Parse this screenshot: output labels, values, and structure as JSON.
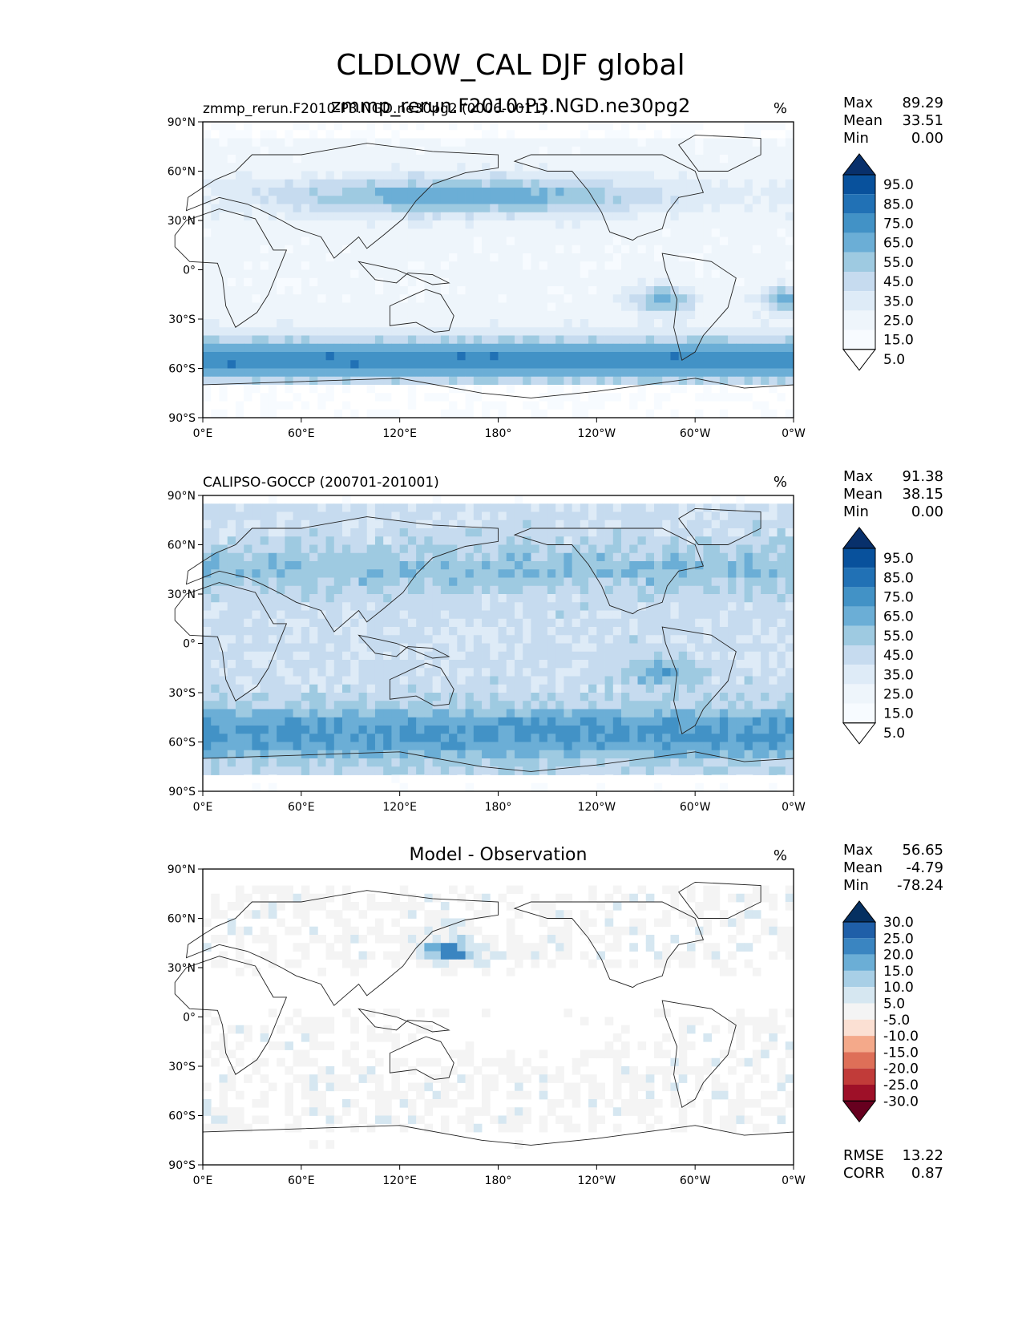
{
  "figure": {
    "title": "CLDLOW_CAL DJF global",
    "overlay_title": "zmmp_rerun.F2010-P3.NGD.ne30pg2"
  },
  "panels": [
    {
      "name": "model",
      "title_left": "zmmp_rerun.F2010-P3.NGD.ne30pg2 (0006-0011)",
      "title_center": "",
      "units": "%",
      "stats": [
        {
          "label": "Max",
          "value": "89.29"
        },
        {
          "label": "Mean",
          "value": "33.51"
        },
        {
          "label": "Min",
          "value": "0.00"
        }
      ],
      "colorbar": {
        "labels": [
          "95.0",
          "85.0",
          "75.0",
          "65.0",
          "55.0",
          "45.0",
          "35.0",
          "25.0",
          "15.0",
          "5.0"
        ],
        "colors": [
          "#08306b",
          "#08519c",
          "#2171b5",
          "#4292c6",
          "#6baed6",
          "#9ecae1",
          "#c6dbef",
          "#deebf7",
          "#eef5fb",
          "#f7fbff",
          "#ffffff"
        ]
      }
    },
    {
      "name": "obs",
      "title_left": "CALIPSO-GOCCP (200701-201001)",
      "title_center": "",
      "units": "%",
      "stats": [
        {
          "label": "Max",
          "value": "91.38"
        },
        {
          "label": "Mean",
          "value": "38.15"
        },
        {
          "label": "Min",
          "value": "0.00"
        }
      ],
      "colorbar": {
        "labels": [
          "95.0",
          "85.0",
          "75.0",
          "65.0",
          "55.0",
          "45.0",
          "35.0",
          "25.0",
          "15.0",
          "5.0"
        ],
        "colors": [
          "#08306b",
          "#08519c",
          "#2171b5",
          "#4292c6",
          "#6baed6",
          "#9ecae1",
          "#c6dbef",
          "#deebf7",
          "#eef5fb",
          "#f7fbff",
          "#ffffff"
        ]
      }
    },
    {
      "name": "diff",
      "title_left": "",
      "title_center": "Model - Observation",
      "units": "%",
      "stats": [
        {
          "label": "Max",
          "value": "56.65"
        },
        {
          "label": "Mean",
          "value": "-4.79"
        },
        {
          "label": "Min",
          "value": "-78.24"
        }
      ],
      "colorbar": {
        "labels": [
          "30.0",
          "25.0",
          "20.0",
          "15.0",
          "10.0",
          "5.0",
          "-5.0",
          "-10.0",
          "-15.0",
          "-20.0",
          "-25.0",
          "-30.0"
        ],
        "colors": [
          "#053061",
          "#1f5fa8",
          "#3a85c1",
          "#6baed6",
          "#a8cfe6",
          "#d6e7f1",
          "#f4f4f4",
          "#fbe0d3",
          "#f4a98a",
          "#de6f58",
          "#c13b39",
          "#9e1028",
          "#67001f"
        ]
      },
      "metrics": [
        {
          "label": "RMSE",
          "value": "13.22"
        },
        {
          "label": "CORR",
          "value": "0.87"
        }
      ]
    }
  ],
  "axes": {
    "xticks": [
      "0°E",
      "60°E",
      "120°E",
      "180°",
      "120°W",
      "60°W",
      "0°W"
    ],
    "yticks": [
      "90°N",
      "60°N",
      "30°N",
      "0°",
      "30°S",
      "60°S",
      "90°S"
    ]
  },
  "chart_data": [
    {
      "type": "heatmap",
      "title": "zmmp_rerun.F2010-P3.NGD.ne30pg2 (0006-0011)",
      "variable": "CLDLOW_CAL",
      "season": "DJF",
      "units": "%",
      "xlim": [
        0,
        360
      ],
      "ylim": [
        -90,
        90
      ],
      "levels": [
        5,
        15,
        25,
        35,
        45,
        55,
        65,
        75,
        85,
        95
      ],
      "max": 89.29,
      "mean": 33.51,
      "min": 0.0
    },
    {
      "type": "heatmap",
      "title": "CALIPSO-GOCCP (200701-201001)",
      "units": "%",
      "xlim": [
        0,
        360
      ],
      "ylim": [
        -90,
        90
      ],
      "levels": [
        5,
        15,
        25,
        35,
        45,
        55,
        65,
        75,
        85,
        95
      ],
      "max": 91.38,
      "mean": 38.15,
      "min": 0.0
    },
    {
      "type": "heatmap",
      "title": "Model - Observation",
      "units": "%",
      "xlim": [
        0,
        360
      ],
      "ylim": [
        -90,
        90
      ],
      "levels": [
        -30,
        -25,
        -20,
        -15,
        -10,
        -5,
        5,
        10,
        15,
        20,
        25,
        30
      ],
      "max": 56.65,
      "mean": -4.79,
      "min": -78.24,
      "rmse": 13.22,
      "corr": 0.87
    }
  ]
}
